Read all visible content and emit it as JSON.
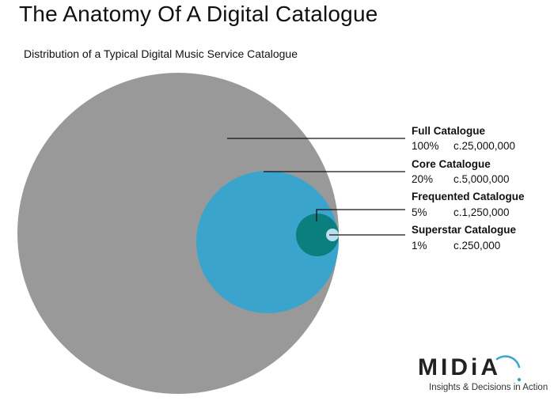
{
  "header": {
    "title": "The Anatomy Of A Digital Catalogue",
    "subtitle": "Distribution of a Typical Digital Music Service Catalogue"
  },
  "chart_data": {
    "type": "nested-circles",
    "segments": [
      {
        "name": "Full Catalogue",
        "percent": "100%",
        "count": "c.25,000,000",
        "share": 1.0,
        "color": "#999999"
      },
      {
        "name": "Core Catalogue",
        "percent": "20%",
        "count": "c.5,000,000",
        "share": 0.2,
        "color": "#3aa4cc"
      },
      {
        "name": "Frequented Catalogue",
        "percent": "5%",
        "count": "c.1,250,000",
        "share": 0.05,
        "color": "#0b7e7e"
      },
      {
        "name": "Superstar Catalogue",
        "percent": "1%",
        "count": "c.250,000",
        "share": 0.01,
        "color": "#b9e0ee"
      }
    ]
  },
  "logo": {
    "name": "MIDiA",
    "tagline": "Insights & Decisions in Action"
  }
}
